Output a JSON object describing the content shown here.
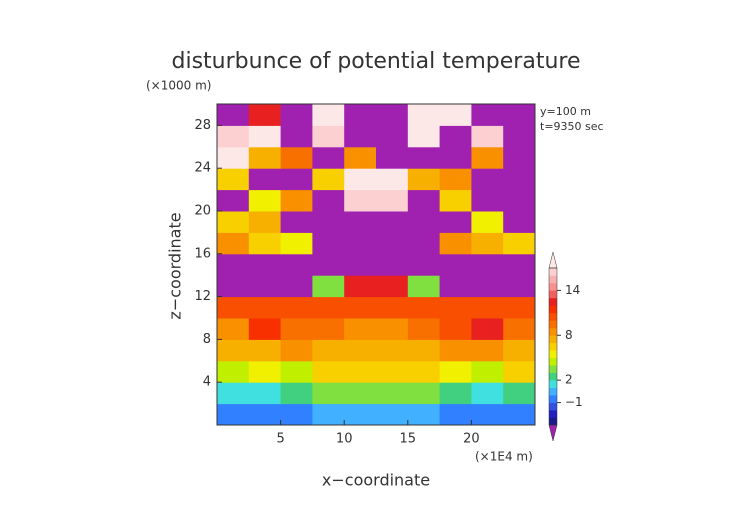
{
  "chart_data": {
    "type": "contourf",
    "title": "disturbunce of potential temperature",
    "y_unit": "(×1000 m)",
    "x_unit": "(×1E4 m)",
    "annotations": [
      "y=100 m",
      "t=9350 sec"
    ],
    "xlabel": "x−coordinate",
    "ylabel": "z−coordinate",
    "xlim": [
      0,
      25
    ],
    "ylim": [
      0,
      30
    ],
    "xticks": [
      5,
      10,
      15,
      20
    ],
    "yticks": [
      4,
      8,
      12,
      16,
      20,
      24,
      28
    ],
    "x": [
      1.25,
      3.75,
      6.25,
      8.75,
      11.25,
      13.75,
      16.25,
      18.75,
      21.25,
      23.75
    ],
    "y": [
      1,
      3,
      5,
      7,
      9,
      11,
      13,
      15,
      17,
      19,
      21,
      23,
      25,
      27,
      29
    ],
    "z": [
      [
        -1,
        -1,
        -1,
        0,
        0,
        0,
        0,
        -1,
        -1,
        -1
      ],
      [
        1,
        1,
        2,
        3,
        3,
        3,
        3,
        2,
        1,
        2
      ],
      [
        4,
        5,
        4,
        6,
        6,
        6,
        6,
        5,
        4,
        6
      ],
      [
        7,
        7,
        8,
        7,
        7,
        7,
        7,
        8,
        8,
        7
      ],
      [
        8,
        11,
        9,
        9,
        8,
        8,
        9,
        10,
        12,
        9
      ],
      [
        10,
        10,
        10,
        10,
        10,
        10,
        10,
        10,
        10,
        10
      ],
      [
        -5,
        -5,
        -5,
        3,
        12,
        12,
        3,
        -5,
        -5,
        -5
      ],
      [
        -5,
        -5,
        -5,
        -5,
        -5,
        -5,
        -5,
        -5,
        -5,
        -5
      ],
      [
        8,
        6,
        5,
        -5,
        -5,
        -5,
        -5,
        8,
        7,
        6
      ],
      [
        6,
        7,
        -5,
        -5,
        -5,
        -5,
        -5,
        -5,
        5,
        -5
      ],
      [
        -5,
        5,
        8,
        -5,
        16,
        16,
        -5,
        6,
        -5,
        -5
      ],
      [
        6,
        -5,
        -5,
        6,
        18,
        18,
        7,
        8,
        -5,
        -5
      ],
      [
        18,
        7,
        9,
        -5,
        8,
        -5,
        -5,
        -5,
        8,
        -5
      ],
      [
        16,
        18,
        -5,
        16,
        -5,
        -5,
        18,
        -5,
        16,
        -5
      ],
      [
        -5,
        12,
        -5,
        18,
        -5,
        -5,
        18,
        18,
        -5,
        -5
      ]
    ],
    "levels": [
      -4,
      -3,
      -2,
      -1,
      0,
      1,
      2,
      3,
      4,
      5,
      6,
      7,
      8,
      9,
      10,
      11,
      12,
      13,
      14,
      15,
      16,
      17
    ],
    "colors": [
      "#1a1a8c",
      "#2020c0",
      "#3050e0",
      "#3080ff",
      "#40b0ff",
      "#40e0e0",
      "#40d080",
      "#80e040",
      "#c0f000",
      "#f0f000",
      "#f8d000",
      "#f8b000",
      "#f89000",
      "#f87000",
      "#f85000",
      "#f83000",
      "#e82020",
      "#f06060",
      "#f89090",
      "#f8b0b0",
      "#fcd0d0"
    ],
    "under_color": "#a020b0",
    "over_color": "#fde8e8",
    "cbar_ticks": [
      {
        "value": -1,
        "label": "−1"
      },
      2,
      8,
      14
    ]
  }
}
